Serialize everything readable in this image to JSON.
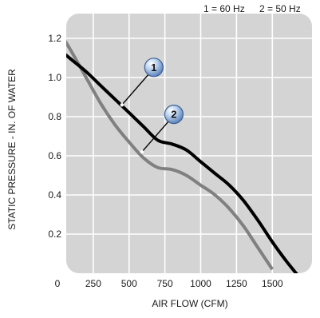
{
  "chart_data": {
    "type": "line",
    "title": "",
    "xlabel": "AIR FLOW (CFM)",
    "ylabel": "STATIC PRESSURE - IN. OF WATER",
    "xlim": [
      0,
      1750
    ],
    "ylim": [
      0,
      1.3
    ],
    "x_ticks": [
      "0",
      "250",
      "500",
      "750",
      "1000",
      "1250",
      "1500"
    ],
    "y_ticks": [
      "0.2",
      "0.4",
      "0.6",
      "0.8",
      "1.0",
      "1.2"
    ],
    "grid": true,
    "legend": {
      "placement": "top-right",
      "entries": [
        "1 = 60 Hz",
        "2 = 50 Hz"
      ]
    },
    "series": [
      {
        "name": "1",
        "color": "#000000",
        "x": [
          0,
          100,
          200,
          300,
          400,
          500,
          600,
          700,
          800,
          900,
          1000,
          1100,
          1200,
          1300,
          1400,
          1500,
          1600,
          1700
        ],
        "y": [
          1.15,
          1.09,
          1.03,
          0.96,
          0.89,
          0.82,
          0.75,
          0.68,
          0.66,
          0.63,
          0.57,
          0.51,
          0.45,
          0.37,
          0.27,
          0.16,
          0.06,
          -0.03
        ]
      },
      {
        "name": "2",
        "color": "#808080",
        "x": [
          0,
          100,
          200,
          300,
          400,
          500,
          600,
          700,
          800,
          900,
          1000,
          1100,
          1200,
          1300,
          1400,
          1500
        ],
        "y": [
          1.25,
          1.13,
          1.0,
          0.87,
          0.76,
          0.67,
          0.59,
          0.54,
          0.53,
          0.5,
          0.45,
          0.4,
          0.33,
          0.24,
          0.13,
          0.02
        ]
      }
    ],
    "markers": [
      {
        "label": "1",
        "at_x": 450,
        "at_y": 0.86
      },
      {
        "label": "2",
        "at_x": 590,
        "at_y": 0.62
      }
    ]
  }
}
